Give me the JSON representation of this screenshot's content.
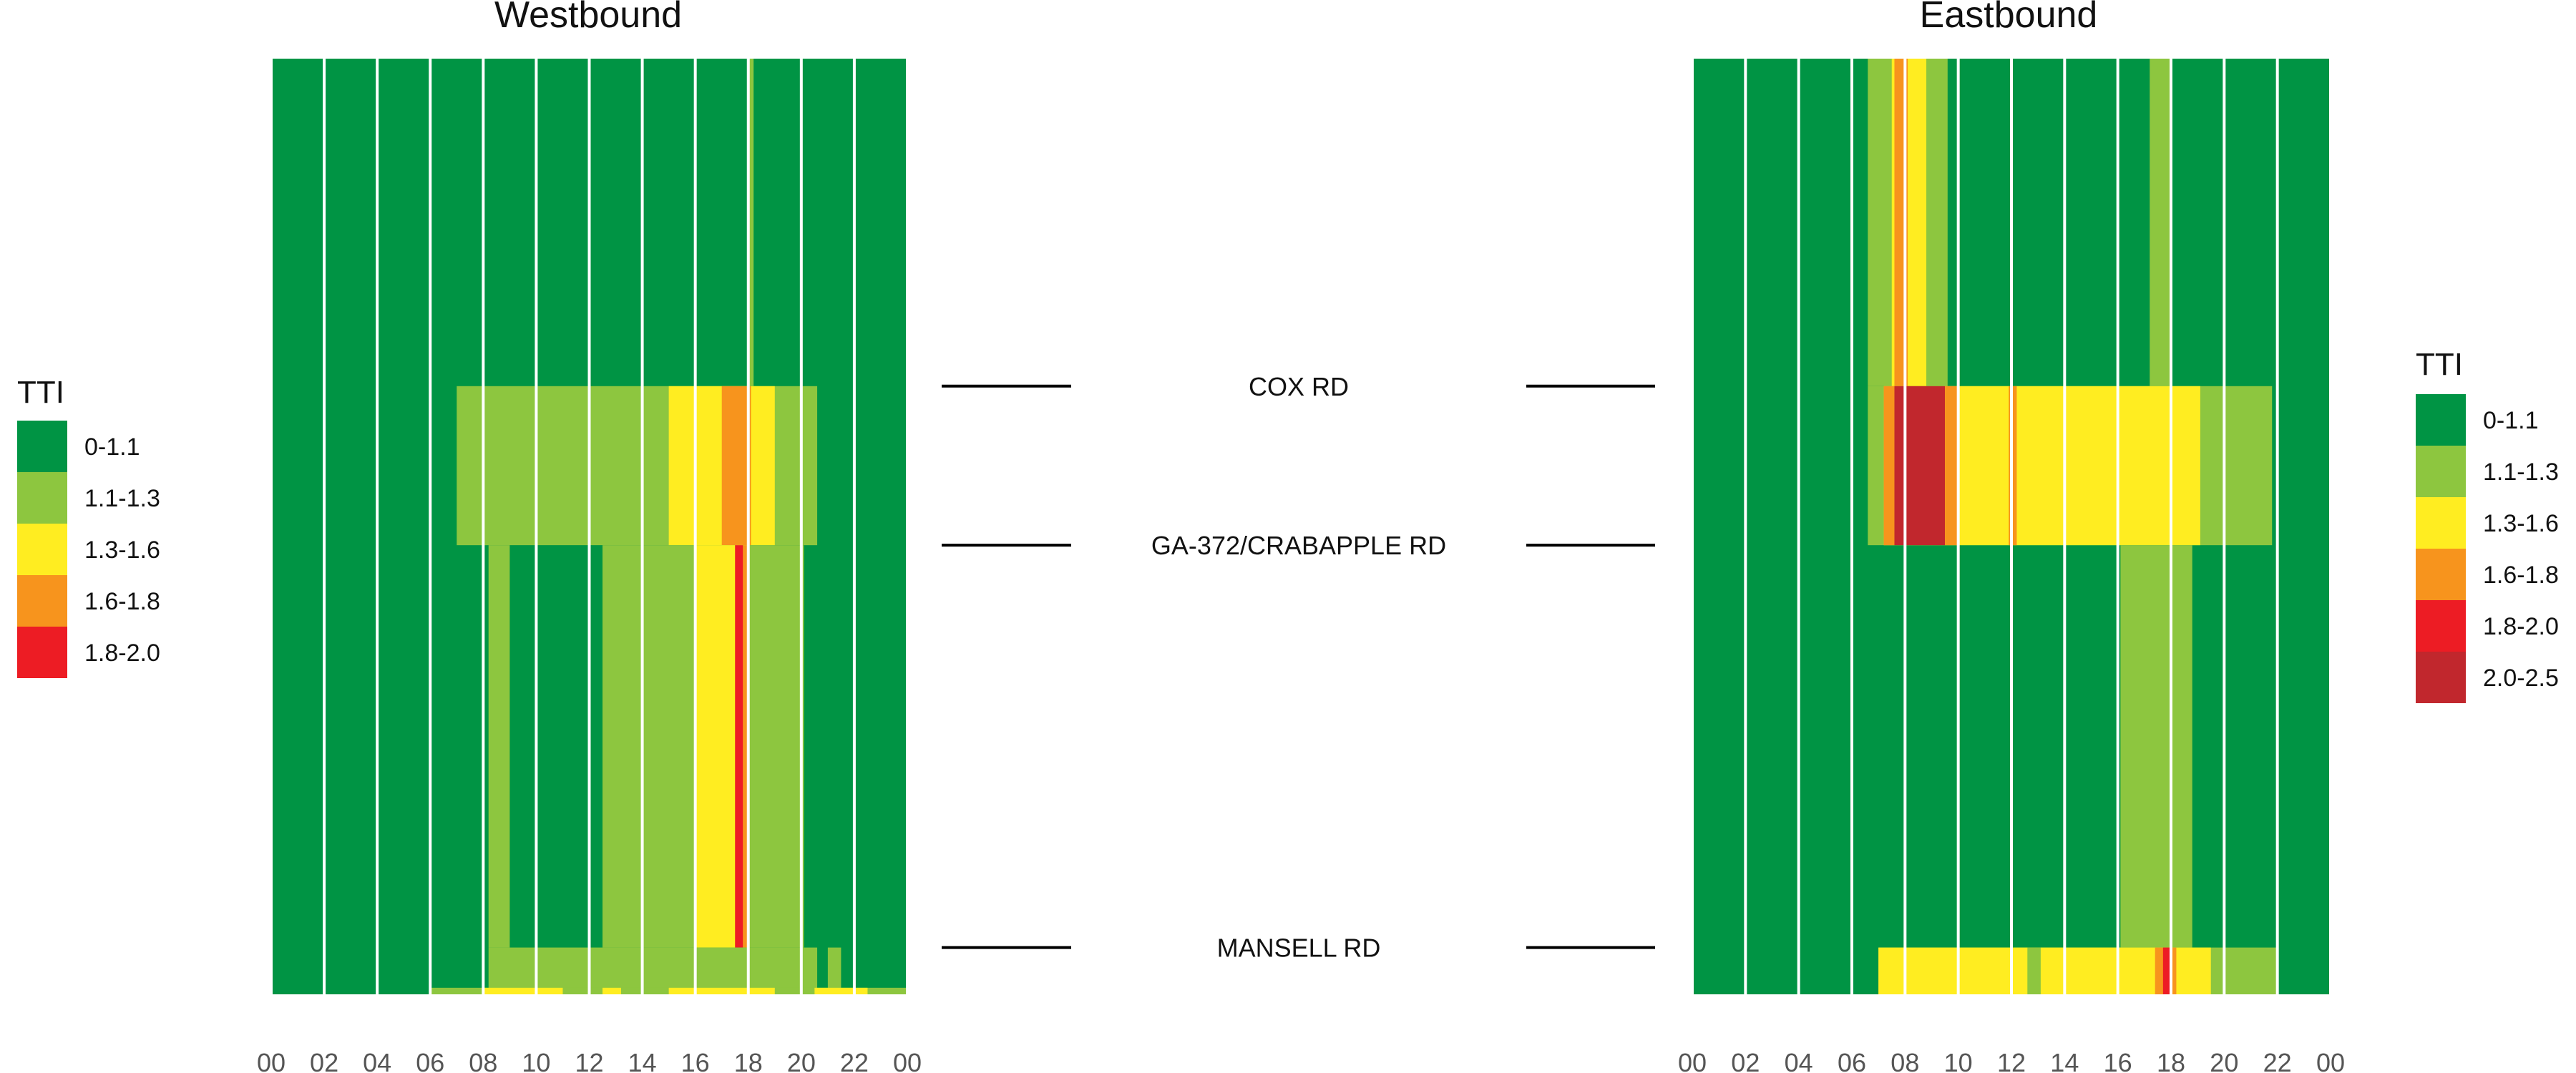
{
  "chart_data": {
    "type": "heatmap",
    "colors": {
      "0-1.1": "#009444",
      "1.1-1.3": "#8dc63f",
      "1.3-1.6": "#ffed21",
      "1.6-1.8": "#f7941d",
      "1.8-2.0": "#ed1c24",
      "2.0-2.5": "#c1272d"
    },
    "x_ticks": [
      "00",
      "02",
      "04",
      "06",
      "08",
      "10",
      "12",
      "14",
      "16",
      "18",
      "20",
      "22",
      "00"
    ],
    "xlim": [
      0,
      24
    ],
    "locations": [
      {
        "label": "COX RD",
        "mile": 0.35
      },
      {
        "label": "GA-372/CRABAPPLE RD",
        "mile": 0.52
      },
      {
        "label": "MANSELL RD",
        "mile": 0.95
      }
    ],
    "panels": [
      {
        "title": "Westbound",
        "legend": {
          "title": "TTI",
          "entries": [
            "0-1.1",
            "1.1-1.3",
            "1.3-1.6",
            "1.6-1.8",
            "1.8-2.0"
          ]
        },
        "cells": [
          {
            "x0": 7.0,
            "x1": 20.6,
            "y0": 0.35,
            "y1": 0.52,
            "tti": "1.1-1.3"
          },
          {
            "x0": 15.0,
            "x1": 19.0,
            "y0": 0.35,
            "y1": 0.52,
            "tti": "1.3-1.6"
          },
          {
            "x0": 17.0,
            "x1": 18.1,
            "y0": 0.35,
            "y1": 0.52,
            "tti": "1.6-1.8"
          },
          {
            "x0": 8.2,
            "x1": 20.1,
            "y0": 0.52,
            "y1": 0.95,
            "tti": "1.1-1.3"
          },
          {
            "x0": 9.0,
            "x1": 12.5,
            "y0": 0.52,
            "y1": 0.95,
            "tti": "0-1.1"
          },
          {
            "x0": 16.0,
            "x1": 18.0,
            "y0": 0.52,
            "y1": 0.95,
            "tti": "1.3-1.6"
          },
          {
            "x0": 17.5,
            "x1": 17.8,
            "y0": 0.52,
            "y1": 0.95,
            "tti": "1.8-2.0"
          },
          {
            "x0": 17.8,
            "x1": 18.0,
            "y0": 0.52,
            "y1": 0.95,
            "tti": "1.6-1.8"
          },
          {
            "x0": 18.0,
            "x1": 18.2,
            "y0": 0.0,
            "y1": 0.35,
            "tti": "1.1-1.3"
          },
          {
            "x0": 8.2,
            "x1": 20.6,
            "y0": 0.95,
            "y1": 1.0,
            "tti": "1.1-1.3"
          },
          {
            "x0": 21.0,
            "x1": 21.5,
            "y0": 0.95,
            "y1": 1.0,
            "tti": "1.1-1.3"
          },
          {
            "x0": 6.0,
            "x1": 24.0,
            "y0": 0.993,
            "y1": 1.0,
            "tti": "1.1-1.3"
          },
          {
            "x0": 8.0,
            "x1": 11.0,
            "y0": 0.993,
            "y1": 1.0,
            "tti": "1.3-1.6"
          },
          {
            "x0": 12.5,
            "x1": 13.2,
            "y0": 0.993,
            "y1": 1.0,
            "tti": "1.3-1.6"
          },
          {
            "x0": 15.0,
            "x1": 19.0,
            "y0": 0.993,
            "y1": 1.0,
            "tti": "1.3-1.6"
          },
          {
            "x0": 20.5,
            "x1": 22.5,
            "y0": 0.993,
            "y1": 1.0,
            "tti": "1.3-1.6"
          }
        ]
      },
      {
        "title": "Eastbound",
        "legend": {
          "title": "TTI",
          "entries": [
            "0-1.1",
            "1.1-1.3",
            "1.3-1.6",
            "1.6-1.8",
            "1.8-2.0",
            "2.0-2.5"
          ]
        },
        "cells": [
          {
            "x0": 6.6,
            "x1": 9.6,
            "y0": 0.0,
            "y1": 0.35,
            "tti": "1.1-1.3"
          },
          {
            "x0": 7.5,
            "x1": 8.8,
            "y0": 0.0,
            "y1": 0.35,
            "tti": "1.3-1.6"
          },
          {
            "x0": 7.6,
            "x1": 8.1,
            "y0": 0.0,
            "y1": 0.35,
            "tti": "1.6-1.8"
          },
          {
            "x0": 17.2,
            "x1": 18.0,
            "y0": 0.0,
            "y1": 0.35,
            "tti": "1.1-1.3"
          },
          {
            "x0": 6.6,
            "x1": 21.8,
            "y0": 0.35,
            "y1": 0.52,
            "tti": "1.1-1.3"
          },
          {
            "x0": 7.2,
            "x1": 19.1,
            "y0": 0.35,
            "y1": 0.52,
            "tti": "1.3-1.6"
          },
          {
            "x0": 7.2,
            "x1": 7.6,
            "y0": 0.35,
            "y1": 0.52,
            "tti": "1.6-1.8"
          },
          {
            "x0": 7.6,
            "x1": 9.5,
            "y0": 0.35,
            "y1": 0.52,
            "tti": "2.0-2.5"
          },
          {
            "x0": 9.5,
            "x1": 10.0,
            "y0": 0.35,
            "y1": 0.52,
            "tti": "1.6-1.8"
          },
          {
            "x0": 11.9,
            "x1": 12.2,
            "y0": 0.35,
            "y1": 0.52,
            "tti": "1.6-1.8"
          },
          {
            "x0": 16.1,
            "x1": 18.8,
            "y0": 0.52,
            "y1": 0.95,
            "tti": "1.1-1.3"
          },
          {
            "x0": 7.0,
            "x1": 22.0,
            "y0": 0.95,
            "y1": 1.0,
            "tti": "1.1-1.3"
          },
          {
            "x0": 7.0,
            "x1": 19.5,
            "y0": 0.95,
            "y1": 1.0,
            "tti": "1.3-1.6"
          },
          {
            "x0": 12.6,
            "x1": 13.1,
            "y0": 0.95,
            "y1": 1.0,
            "tti": "1.1-1.3"
          },
          {
            "x0": 17.4,
            "x1": 18.2,
            "y0": 0.95,
            "y1": 1.0,
            "tti": "1.6-1.8"
          },
          {
            "x0": 17.7,
            "x1": 18.0,
            "y0": 0.95,
            "y1": 1.0,
            "tti": "1.8-2.0"
          }
        ]
      }
    ]
  }
}
